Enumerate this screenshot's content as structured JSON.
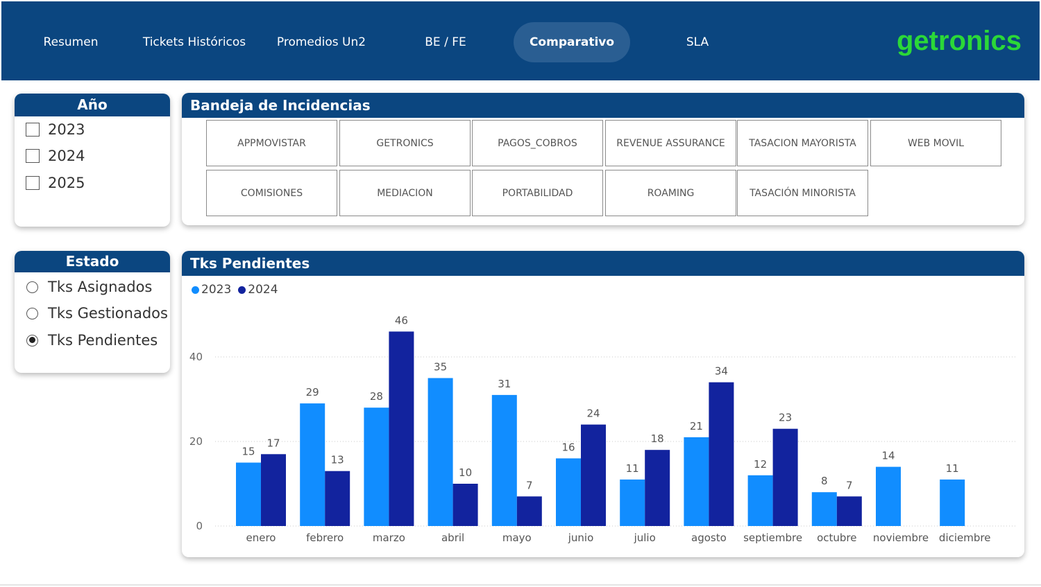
{
  "nav": {
    "items": [
      {
        "label": "Resumen",
        "active": false
      },
      {
        "label": "Tickets Históricos",
        "active": false
      },
      {
        "label": "Promedios Un2",
        "active": false
      },
      {
        "label": "BE / FE",
        "active": false
      },
      {
        "label": "Comparativo",
        "active": true
      },
      {
        "label": "SLA",
        "active": false
      }
    ],
    "logo_text": "getronics"
  },
  "colors": {
    "header_blue": "#0b4680",
    "series_2023": "#118dff",
    "series_2024": "#12239e",
    "logo_green": "#2bd838"
  },
  "year_slicer": {
    "title": "Año",
    "options": [
      {
        "label": "2023",
        "checked": false
      },
      {
        "label": "2024",
        "checked": false
      },
      {
        "label": "2025",
        "checked": false
      }
    ]
  },
  "estado_slicer": {
    "title": "Estado",
    "options": [
      {
        "label": "Tks Asignados",
        "selected": false
      },
      {
        "label": "Tks Gestionados",
        "selected": false
      },
      {
        "label": "Tks Pendientes",
        "selected": true
      }
    ]
  },
  "bandeja": {
    "title": "Bandeja de Incidencias",
    "buttons": [
      [
        "APPMOVISTAR",
        "GETRONICS",
        "PAGOS_COBROS",
        "REVENUE ASSURANCE",
        "TASACION MAYORISTA",
        "WEB MOVIL"
      ],
      [
        "COMISIONES",
        "MEDIACION",
        "PORTABILIDAD",
        "ROAMING",
        "TASACIÓN MINORISTA"
      ]
    ]
  },
  "chart_panel": {
    "title": "Tks Pendientes"
  },
  "chart_data": {
    "type": "bar",
    "title": "Tks Pendientes",
    "categories": [
      "enero",
      "febrero",
      "marzo",
      "abril",
      "mayo",
      "junio",
      "julio",
      "agosto",
      "septiembre",
      "octubre",
      "noviembre",
      "diciembre"
    ],
    "series": [
      {
        "name": "2023",
        "color": "#118dff",
        "values": [
          15,
          29,
          28,
          35,
          31,
          16,
          11,
          21,
          12,
          8,
          14,
          11
        ]
      },
      {
        "name": "2024",
        "color": "#12239e",
        "values": [
          17,
          13,
          46,
          10,
          7,
          24,
          18,
          34,
          23,
          7,
          null,
          null
        ]
      }
    ],
    "ylim": [
      0,
      46
    ],
    "yticks": [
      0,
      20,
      40
    ],
    "grid": true,
    "legend": "top-left",
    "data_labels": true
  }
}
